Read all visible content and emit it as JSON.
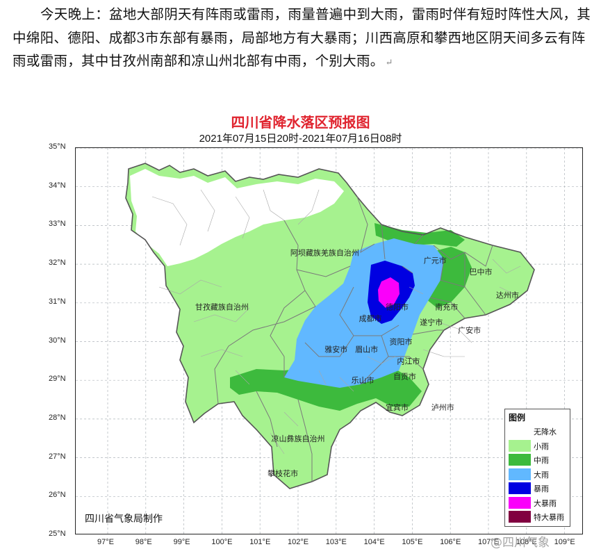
{
  "intro_text": "今天晚上：盆地大部阴天有阵雨或雷雨，雨量普遍中到大雨，雷雨时伴有短时阵性大风，其中绵阳、德阳、成都3市东部有暴雨，局部地方有大暴雨；川西高原和攀西地区阴天间多云有阵雨或雷雨，其中甘孜州南部和凉山州北部有中雨，个别大雨。",
  "paragraph_mark": "↵",
  "map_title": "四川省降水落区预报图",
  "map_subtitle": "2021年07月15日20时-2021年07月16日08时",
  "agency": "四川省气象局制作",
  "watermark": "@四川气象",
  "lat_labels": [
    {
      "label": "35°N",
      "lat": 35
    },
    {
      "label": "34°N",
      "lat": 34
    },
    {
      "label": "33°N",
      "lat": 33
    },
    {
      "label": "32°N",
      "lat": 32
    },
    {
      "label": "31°N",
      "lat": 31
    },
    {
      "label": "30°N",
      "lat": 30
    },
    {
      "label": "29°N",
      "lat": 29
    },
    {
      "label": "28°N",
      "lat": 28
    },
    {
      "label": "27°N",
      "lat": 27
    },
    {
      "label": "26°N",
      "lat": 26
    },
    {
      "label": "25°N",
      "lat": 25
    }
  ],
  "lon_labels": [
    {
      "label": "97°E",
      "lon": 97
    },
    {
      "label": "98°E",
      "lon": 98
    },
    {
      "label": "99°E",
      "lon": 99
    },
    {
      "label": "100°E",
      "lon": 100
    },
    {
      "label": "101°E",
      "lon": 101
    },
    {
      "label": "102°E",
      "lon": 102
    },
    {
      "label": "103°E",
      "lon": 103
    },
    {
      "label": "104°E",
      "lon": 104
    },
    {
      "label": "105°E",
      "lon": 105
    },
    {
      "label": "106°E",
      "lon": 106
    },
    {
      "label": "107°E",
      "lon": 107
    },
    {
      "label": "108°E",
      "lon": 108
    },
    {
      "label": "109°E",
      "lon": 109
    }
  ],
  "regions": [
    {
      "name": "阿坝藏族羌族自治州",
      "lon": 102.7,
      "lat": 32.3
    },
    {
      "name": "甘孜藏族自治州",
      "lon": 100.0,
      "lat": 30.9
    },
    {
      "name": "凉山彝族自治州",
      "lon": 102.0,
      "lat": 27.5
    },
    {
      "name": "攀枝花市",
      "lon": 101.6,
      "lat": 26.6
    },
    {
      "name": "广元市",
      "lon": 105.6,
      "lat": 32.1
    },
    {
      "name": "巴中市",
      "lon": 106.8,
      "lat": 31.8
    },
    {
      "name": "南充市",
      "lon": 105.9,
      "lat": 30.9
    },
    {
      "name": "达州市",
      "lon": 107.5,
      "lat": 31.2
    },
    {
      "name": "德阳市",
      "lon": 104.6,
      "lat": 30.9
    },
    {
      "name": "成都市",
      "lon": 103.9,
      "lat": 30.6
    },
    {
      "name": "遂宁市",
      "lon": 105.5,
      "lat": 30.5
    },
    {
      "name": "广安市",
      "lon": 106.5,
      "lat": 30.3
    },
    {
      "name": "资阳市",
      "lon": 104.7,
      "lat": 30.0
    },
    {
      "name": "雅安市",
      "lon": 103.0,
      "lat": 29.8
    },
    {
      "name": "眉山市",
      "lon": 103.8,
      "lat": 29.8
    },
    {
      "name": "内江市",
      "lon": 104.9,
      "lat": 29.5
    },
    {
      "name": "乐山市",
      "lon": 103.7,
      "lat": 29.0
    },
    {
      "name": "自贡市",
      "lon": 104.8,
      "lat": 29.1
    },
    {
      "name": "宜宾市",
      "lon": 104.6,
      "lat": 28.3
    },
    {
      "name": "泸州市",
      "lon": 105.8,
      "lat": 28.3
    }
  ],
  "legend": {
    "title": "图例",
    "items": [
      {
        "label": "无降水",
        "color": "#ffffff"
      },
      {
        "label": "小雨",
        "color": "#a6f28f"
      },
      {
        "label": "中雨",
        "color": "#3dba3d"
      },
      {
        "label": "大雨",
        "color": "#61b8ff"
      },
      {
        "label": "暴雨",
        "color": "#0000e1"
      },
      {
        "label": "大暴雨",
        "color": "#fa00fa"
      },
      {
        "label": "特大暴雨",
        "color": "#810040"
      }
    ]
  },
  "colors": {
    "title": "#e0242f",
    "light_rain": "#a6f28f",
    "moderate_rain": "#3dba3d",
    "heavy_rain": "#61b8ff",
    "rainstorm": "#0000e1",
    "heavy_rainstorm": "#fa00fa",
    "boundary": "#7a7a7a"
  }
}
